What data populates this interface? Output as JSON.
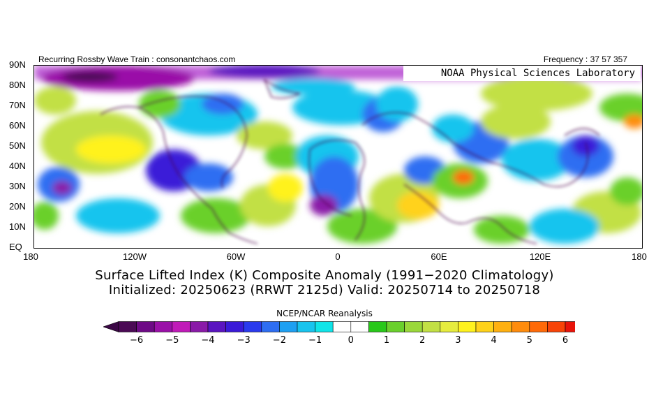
{
  "header": {
    "left_text": "Recurring Rossby Wave Train : consonantchaos.com",
    "right_text": "Frequency : 37 57 357"
  },
  "lab_label": "NOAA Physical Sciences Laboratory",
  "lat_labels": [
    "90N",
    "80N",
    "70N",
    "60N",
    "50N",
    "40N",
    "30N",
    "20N",
    "10N",
    "EQ"
  ],
  "lon_labels": [
    "180",
    "120W",
    "60W",
    "0",
    "60E",
    "120E",
    "180"
  ],
  "title_line1": "Surface Lifted Index (K) Composite Anomaly (1991−2020 Climatology)",
  "title_line2": "Initialized: 20250623 (RRWT 2125d) Valid: 20250714 to 20250718",
  "colorbar": {
    "source": "NCEP/NCAR Reanalysis",
    "tick_labels": [
      "−6",
      "−5",
      "−4",
      "−3",
      "−2",
      "−1",
      "0",
      "1",
      "2",
      "3",
      "4",
      "5",
      "6"
    ],
    "colors": [
      "#4b0a55",
      "#6e0a86",
      "#9a10a8",
      "#c01ab8",
      "#8a1aa8",
      "#5a14c0",
      "#3a1ad8",
      "#2a3aee",
      "#2e6ef2",
      "#1ea0f2",
      "#18c4ee",
      "#10e4e8",
      "#ffffff",
      "#ffffff",
      "#28c81a",
      "#6ad02c",
      "#9ad83a",
      "#c2e044",
      "#e6ec3e",
      "#fff21e",
      "#ffd21a",
      "#ffb010",
      "#ff8c0c",
      "#ff6a08",
      "#f84408",
      "#e8140a"
    ],
    "low_color": "#3c0846",
    "high_color": "#d40c0c"
  },
  "map_palette": {
    "background": "#ffffff",
    "pos_weak": "#6ad02c",
    "pos_mid": "#c2e044",
    "pos_strong": "#fff21e",
    "pos_hot": "#ff8c0c",
    "neg_weak": "#18c4ee",
    "neg_mid": "#2e6ef2",
    "neg_strong": "#3a1ad8",
    "neg_deep": "#8a1aa8",
    "outline": "#4a0a4a",
    "top_band": "#7a14b0"
  }
}
